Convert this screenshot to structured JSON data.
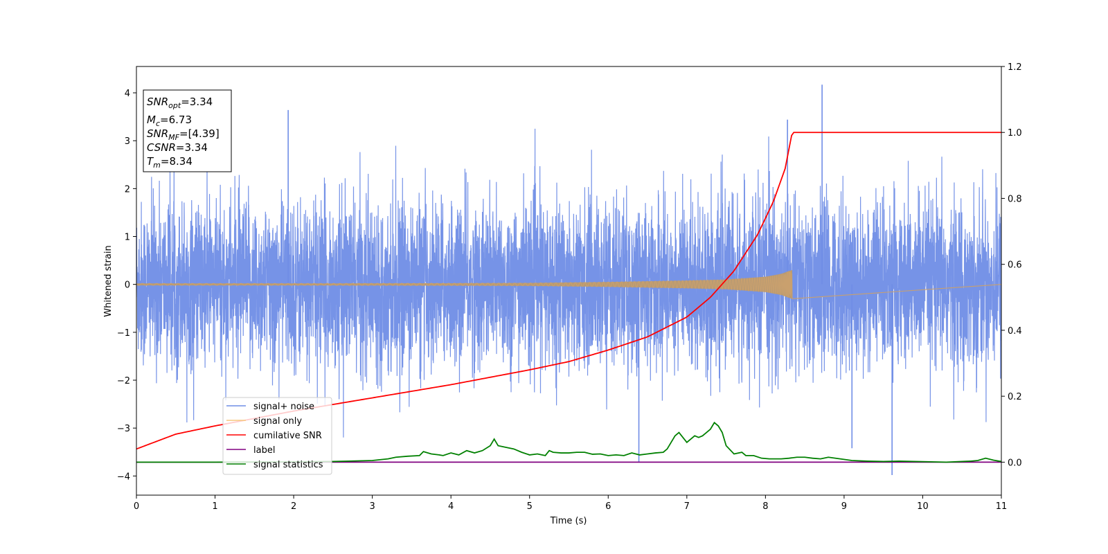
{
  "chart_data": {
    "type": "line",
    "xlabel": "Time (s)",
    "ylabel": "Whitened strain",
    "xlim": [
      0,
      11
    ],
    "ylim_left": [
      -4.4,
      4.55
    ],
    "ylim_right": [
      -0.1,
      1.2
    ],
    "x_ticks": [
      "0",
      "1",
      "2",
      "3",
      "4",
      "5",
      "6",
      "7",
      "8",
      "9",
      "10",
      "11"
    ],
    "y_ticks_left": [
      "4",
      "3",
      "2",
      "1",
      "0",
      "−1",
      "−2",
      "−3",
      "−4"
    ],
    "y_ticks_left_values": [
      4,
      3,
      2,
      1,
      0,
      -1,
      -2,
      -3,
      -4
    ],
    "y_ticks_right": [
      "1.2",
      "1.0",
      "0.8",
      "0.6",
      "0.4",
      "0.2",
      "0.0"
    ],
    "y_ticks_right_values": [
      1.2,
      1.0,
      0.8,
      0.6,
      0.4,
      0.2,
      0.0
    ],
    "grid": false,
    "legend_position": "lower-left",
    "annotation": {
      "snr_opt": {
        "base": "SNR",
        "sub": "opt",
        "value": "=3.34"
      },
      "mc": {
        "base": "M",
        "sub": "c",
        "value": "=6.73"
      },
      "snr_mf": {
        "base": "SNR",
        "sub": "MF",
        "value": "=[4.39]"
      },
      "csnr": {
        "base": "CSNR",
        "value": "=3.34"
      },
      "tm": {
        "base": "T",
        "sub": "m",
        "value": "=8.34"
      }
    },
    "merger_time": 8.34,
    "series": [
      {
        "name": "signal+ noise",
        "color": "#6f8de6",
        "axis": "left",
        "description_values": {
          "sigma": 0.85,
          "max_spike": 4.17,
          "min_spike": -3.98,
          "spike_x_max": 8.72,
          "spike_x_min": 9.61
        }
      },
      {
        "name": "signal only",
        "color": "#f5c77f",
        "axis": "left",
        "envelope": {
          "x": [
            0,
            2,
            4,
            5,
            6,
            7,
            7.5,
            8,
            8.2,
            8.3,
            8.34
          ],
          "amp": [
            0.02,
            0.02,
            0.025,
            0.03,
            0.05,
            0.08,
            0.1,
            0.16,
            0.22,
            0.28,
            0.3
          ]
        }
      },
      {
        "name": "cumilative SNR",
        "color": "#ff0000",
        "axis": "right",
        "x": [
          0,
          0.5,
          1,
          2,
          3,
          4,
          5,
          5.5,
          6,
          6.5,
          7,
          7.3,
          7.6,
          7.9,
          8.1,
          8.25,
          8.34,
          11
        ],
        "y": [
          0.04,
          0.085,
          0.11,
          0.155,
          0.195,
          0.235,
          0.28,
          0.305,
          0.34,
          0.38,
          0.44,
          0.5,
          0.58,
          0.69,
          0.79,
          0.89,
          1.0,
          1.0
        ]
      },
      {
        "name": "label",
        "color": "#800080",
        "axis": "right",
        "x": [
          0,
          11
        ],
        "y": [
          0,
          0
        ]
      },
      {
        "name": "signal statistics",
        "color": "#008000",
        "axis": "right",
        "x": [
          0,
          1,
          2,
          2.5,
          3,
          3.2,
          3.3,
          3.45,
          3.6,
          3.65,
          3.75,
          3.85,
          3.9,
          4.0,
          4.1,
          4.2,
          4.3,
          4.4,
          4.5,
          4.55,
          4.6,
          4.7,
          4.8,
          4.9,
          5.0,
          5.1,
          5.2,
          5.25,
          5.3,
          5.4,
          5.5,
          5.6,
          5.7,
          5.8,
          5.9,
          6.0,
          6.1,
          6.2,
          6.3,
          6.4,
          6.5,
          6.6,
          6.7,
          6.75,
          6.8,
          6.85,
          6.9,
          6.95,
          7.0,
          7.1,
          7.15,
          7.2,
          7.25,
          7.3,
          7.35,
          7.4,
          7.45,
          7.5,
          7.6,
          7.7,
          7.75,
          7.85,
          7.95,
          8.05,
          8.2,
          8.3,
          8.4,
          8.5,
          8.6,
          8.7,
          8.8,
          8.95,
          9.1,
          9.3,
          9.5,
          9.7,
          9.9,
          10.1,
          10.3,
          10.5,
          10.6,
          10.7,
          10.8,
          10.9,
          11.0
        ],
        "y": [
          0.0,
          0.0,
          0.001,
          0.002,
          0.005,
          0.01,
          0.015,
          0.018,
          0.02,
          0.032,
          0.025,
          0.022,
          0.02,
          0.028,
          0.022,
          0.035,
          0.028,
          0.035,
          0.05,
          0.07,
          0.05,
          0.045,
          0.04,
          0.03,
          0.022,
          0.025,
          0.02,
          0.035,
          0.03,
          0.028,
          0.028,
          0.03,
          0.03,
          0.024,
          0.025,
          0.02,
          0.022,
          0.02,
          0.028,
          0.022,
          0.025,
          0.028,
          0.03,
          0.04,
          0.06,
          0.08,
          0.09,
          0.075,
          0.06,
          0.08,
          0.075,
          0.08,
          0.09,
          0.1,
          0.12,
          0.11,
          0.09,
          0.05,
          0.025,
          0.03,
          0.02,
          0.02,
          0.012,
          0.01,
          0.01,
          0.012,
          0.015,
          0.015,
          0.012,
          0.01,
          0.015,
          0.01,
          0.005,
          0.003,
          0.002,
          0.003,
          0.002,
          0.001,
          0.0,
          0.002,
          0.003,
          0.005,
          0.012,
          0.006,
          0.002
        ]
      }
    ]
  }
}
